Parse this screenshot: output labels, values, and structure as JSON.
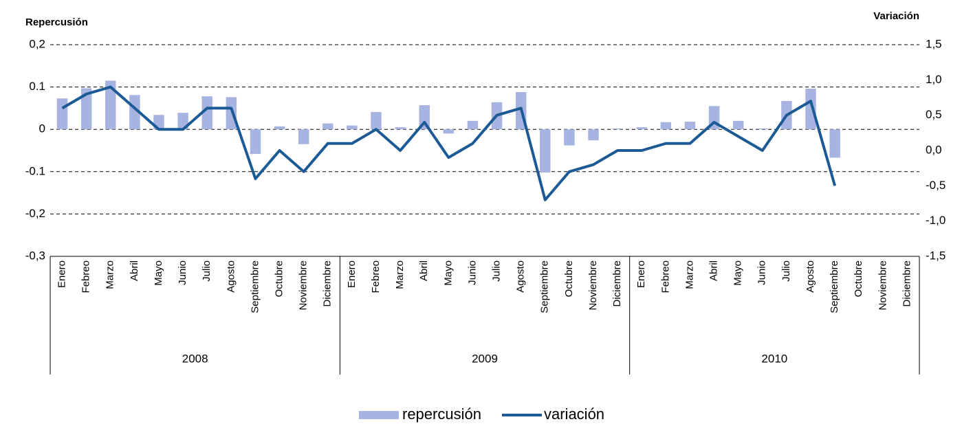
{
  "chart_data": {
    "type": "bar-line",
    "y_title": "Repercusión",
    "y2_title": "Variación",
    "categories": [
      "Enero",
      "Febreo",
      "Marzo",
      "Abril",
      "Mayo",
      "Junio",
      "Julio",
      "Agosto",
      "Septiembre",
      "Octubre",
      "Noviembre",
      "Diciembre",
      "Enero",
      "Febreo",
      "Marzo",
      "Abril",
      "Mayo",
      "Junio",
      "Julio",
      "Agosto",
      "Septiembre",
      "Octubre",
      "Noviembre",
      "Diciembre",
      "Enero",
      "Febreo",
      "Marzo",
      "Abril",
      "Mayo",
      "Junio",
      "Julio",
      "Agosto",
      "Septiembre",
      "Octubre",
      "Noviembre",
      "Diciembre"
    ],
    "years": [
      "2008",
      "2009",
      "2010"
    ],
    "series": [
      {
        "name": "repercusión",
        "type": "bar",
        "axis": "y",
        "color": "#a7b3e1",
        "values": [
          0.073,
          0.097,
          0.115,
          0.081,
          0.034,
          0.039,
          0.078,
          0.076,
          -0.058,
          0.007,
          -0.035,
          0.014,
          0.009,
          0.041,
          0.005,
          0.057,
          -0.01,
          0.02,
          0.064,
          0.088,
          -0.102,
          -0.038,
          -0.026,
          0.002,
          0.005,
          0.017,
          0.018,
          0.055,
          0.02,
          0.002,
          0.067,
          0.096,
          -0.067,
          null,
          null,
          null
        ]
      },
      {
        "name": "variación",
        "type": "line",
        "axis": "y2",
        "color": "#1c5a96",
        "values": [
          0.6,
          0.8,
          0.9,
          0.6,
          0.3,
          0.3,
          0.6,
          0.6,
          -0.4,
          0.0,
          -0.3,
          0.1,
          0.1,
          0.3,
          0.0,
          0.4,
          -0.1,
          0.1,
          0.5,
          0.6,
          -0.7,
          -0.3,
          -0.2,
          0.0,
          0.0,
          0.1,
          0.1,
          0.4,
          0.2,
          0.0,
          0.5,
          0.7,
          -0.5,
          null,
          null,
          null
        ]
      }
    ],
    "ylim": [
      -0.3,
      0.2
    ],
    "yticks": [
      {
        "value": -0.3,
        "label": "-0,3"
      },
      {
        "value": -0.2,
        "label": "-0,2"
      },
      -0.1,
      0,
      0.1,
      {
        "value": 0.2,
        "label": "0,2"
      }
    ],
    "y2lim": [
      -1.5,
      1.5
    ],
    "y2ticks": [
      {
        "value": -1.5,
        "label": "-1,5"
      },
      {
        "value": -1.0,
        "label": "-1,0"
      },
      {
        "value": -0.5,
        "label": "-0,5"
      },
      {
        "value": 0.0,
        "label": "0,0"
      },
      {
        "value": 0.5,
        "label": "0,5"
      },
      {
        "value": 1.0,
        "label": "1,0"
      },
      {
        "value": 1.5,
        "label": "1,5"
      }
    ],
    "grid": true,
    "legend": "bottom"
  }
}
